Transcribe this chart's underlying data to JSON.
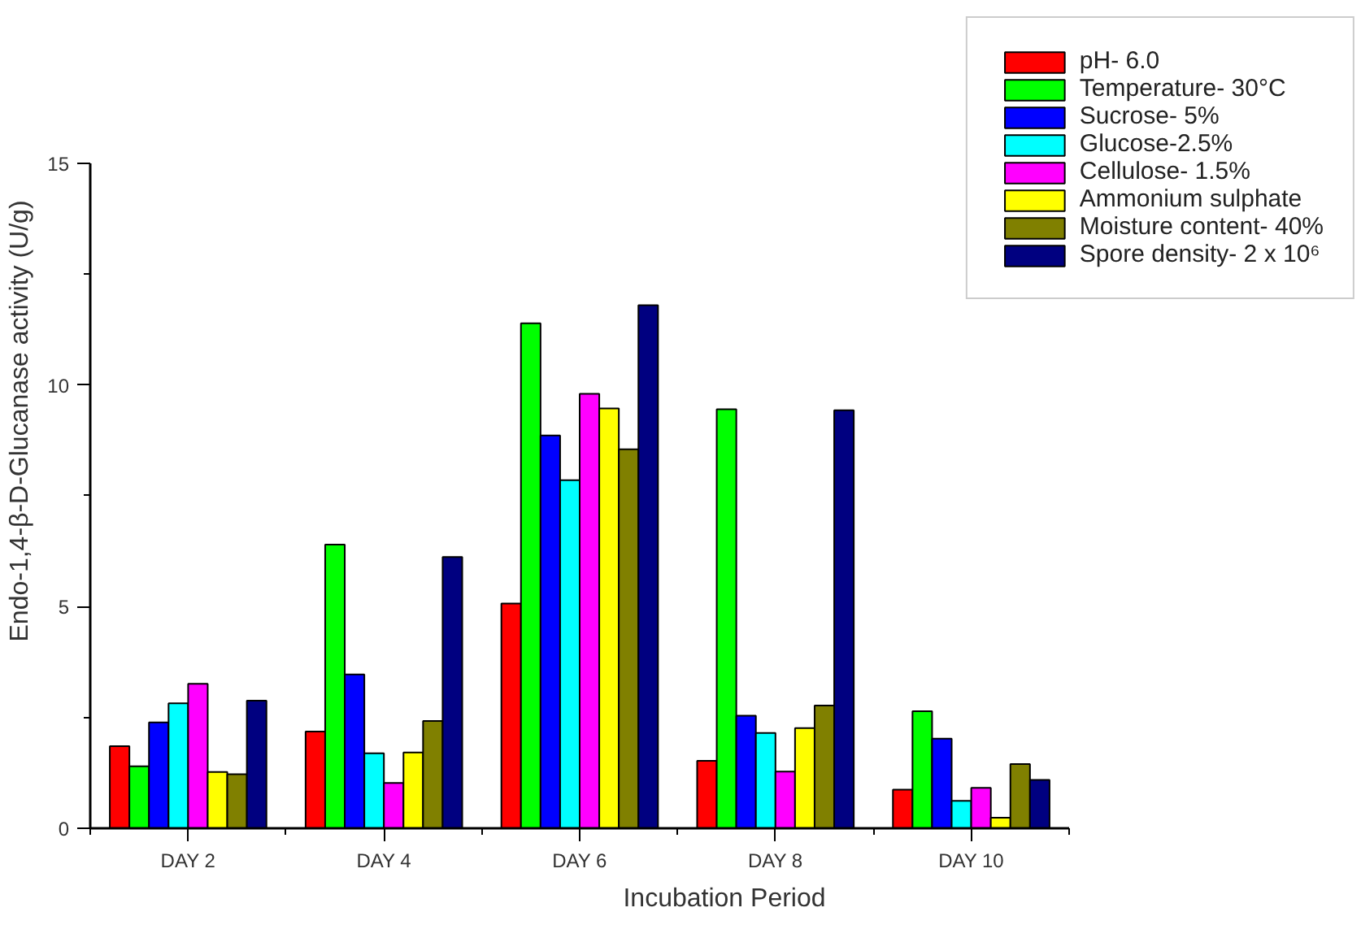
{
  "chart_data": {
    "type": "bar",
    "xlabel": "Incubation Period",
    "ylabel": "Endo-1,4-β-D-Glucanase activity (U/g)",
    "categories": [
      "DAY 2",
      "DAY 4",
      "DAY 6",
      "DAY 8",
      "DAY 10"
    ],
    "series": [
      {
        "name": "pH- 6.0",
        "color": "#ff0000",
        "values": [
          1.85,
          2.18,
          5.07,
          1.52,
          0.87
        ]
      },
      {
        "name": "Temperature- 30°C",
        "color": "#00ff00",
        "values": [
          1.4,
          6.4,
          11.39,
          9.45,
          2.64
        ]
      },
      {
        "name": "Sucrose- 5%",
        "color": "#0000ff",
        "values": [
          2.39,
          3.47,
          8.86,
          2.54,
          2.02
        ]
      },
      {
        "name": "Glucose-2.5%",
        "color": "#00ffff",
        "values": [
          2.82,
          1.69,
          7.85,
          2.15,
          0.62
        ]
      },
      {
        "name": "Cellulose- 1.5%",
        "color": "#ff00ff",
        "values": [
          3.26,
          1.02,
          9.8,
          1.28,
          0.91
        ]
      },
      {
        "name": "Ammonium sulphate",
        "color": "#ffff00",
        "values": [
          1.27,
          1.71,
          9.47,
          2.26,
          0.24
        ]
      },
      {
        "name": "Moisture content- 40%",
        "color": "#808000",
        "values": [
          1.22,
          2.42,
          8.55,
          2.77,
          1.45
        ]
      },
      {
        "name": "Spore density- 2 x 10⁶",
        "color": "#000080",
        "values": [
          2.88,
          6.12,
          11.8,
          9.43,
          1.09
        ]
      }
    ],
    "ylim": [
      0,
      15
    ],
    "yticks": [
      0,
      5,
      10,
      15
    ],
    "grid": false,
    "legend": "top right"
  }
}
